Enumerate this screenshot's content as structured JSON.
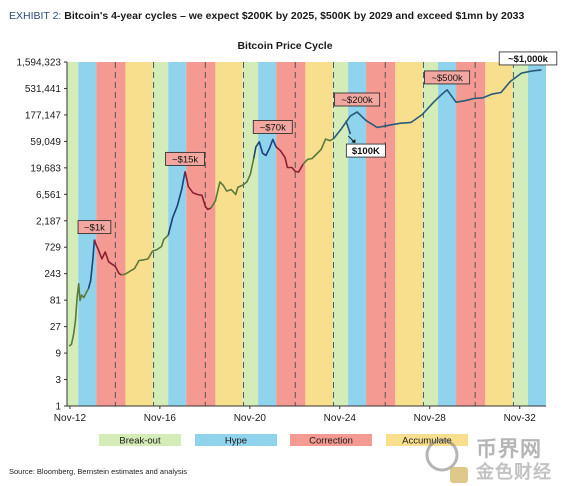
{
  "exhibit": {
    "label": "EXHIBIT 2:",
    "title": "Bitcoin's 4-year cycles – we expect $200K by 2025, $500K by 2029 and exceed $1mn by 2033"
  },
  "source": "Source: Bloomberg, Bernstein estimates and analysis",
  "watermark": {
    "line1": "币界网",
    "line2": "金色财经"
  },
  "colors": {
    "breakout": "#d3ecb8",
    "hype": "#8fd3ec",
    "correction": "#f49a93",
    "accumulate": "#f8df8e",
    "line_blue": "#1f3f7a",
    "line_red": "#8a2030",
    "line_green": "#5a7a3a",
    "callout_fill": "#f2a7a0",
    "forecast_line": "#2a5a7a"
  },
  "chart_data": {
    "type": "line",
    "title": "Bitcoin Price Cycle",
    "xlabel": "",
    "ylabel": "",
    "x_axis": {
      "start_year": 2012.7,
      "end_year": 2034.0,
      "ticks": [
        "Nov-12",
        "Nov-16",
        "Nov-20",
        "Nov-24",
        "Nov-28",
        "Nov-32"
      ],
      "tick_years": [
        2012.83,
        2016.83,
        2020.83,
        2024.83,
        2028.83,
        2032.83
      ]
    },
    "y_axis": {
      "scale": "log3",
      "ticks": [
        "1",
        "3",
        "9",
        "27",
        "81",
        "243",
        "729",
        "2,187",
        "6,561",
        "19,683",
        "59,049",
        "177,147",
        "531,441",
        "1,594,323"
      ],
      "min": 1,
      "max": 1594323
    },
    "grid": false,
    "legend_position": "bottom",
    "legend": [
      {
        "label": "Break-out",
        "phase": "breakout"
      },
      {
        "label": "Hype",
        "phase": "hype"
      },
      {
        "label": "Correction",
        "phase": "correction"
      },
      {
        "label": "Accumulate",
        "phase": "accumulate"
      }
    ],
    "bands": [
      {
        "start": 2012.7,
        "end": 2013.2,
        "phase": "breakout"
      },
      {
        "start": 2013.2,
        "end": 2014.0,
        "phase": "hype"
      },
      {
        "start": 2014.0,
        "end": 2015.3,
        "phase": "correction"
      },
      {
        "start": 2015.3,
        "end": 2016.5,
        "phase": "accumulate"
      },
      {
        "start": 2016.5,
        "end": 2017.2,
        "phase": "breakout"
      },
      {
        "start": 2017.2,
        "end": 2018.0,
        "phase": "hype"
      },
      {
        "start": 2018.0,
        "end": 2019.3,
        "phase": "correction"
      },
      {
        "start": 2019.3,
        "end": 2020.5,
        "phase": "accumulate"
      },
      {
        "start": 2020.5,
        "end": 2021.2,
        "phase": "breakout"
      },
      {
        "start": 2021.2,
        "end": 2022.0,
        "phase": "hype"
      },
      {
        "start": 2022.0,
        "end": 2023.3,
        "phase": "correction"
      },
      {
        "start": 2023.3,
        "end": 2024.5,
        "phase": "accumulate"
      },
      {
        "start": 2024.5,
        "end": 2025.2,
        "phase": "breakout"
      },
      {
        "start": 2025.2,
        "end": 2026.0,
        "phase": "hype"
      },
      {
        "start": 2026.0,
        "end": 2027.3,
        "phase": "correction"
      },
      {
        "start": 2027.3,
        "end": 2028.5,
        "phase": "accumulate"
      },
      {
        "start": 2028.5,
        "end": 2029.2,
        "phase": "breakout"
      },
      {
        "start": 2029.2,
        "end": 2030.0,
        "phase": "hype"
      },
      {
        "start": 2030.0,
        "end": 2031.3,
        "phase": "correction"
      },
      {
        "start": 2031.3,
        "end": 2032.5,
        "phase": "accumulate"
      },
      {
        "start": 2032.5,
        "end": 2033.2,
        "phase": "breakout"
      },
      {
        "start": 2033.2,
        "end": 2034.0,
        "phase": "hype"
      }
    ],
    "dividers": [
      2014.85,
      2016.55,
      2018.85,
      2020.55,
      2022.85,
      2024.55,
      2026.85,
      2028.55,
      2030.85,
      2032.55
    ],
    "segments": [
      {
        "name": "",
        "color_key": "line_green",
        "points": [
          [
            2012.8,
            12
          ],
          [
            2012.9,
            13
          ],
          [
            2013.0,
            20
          ],
          [
            2013.08,
            35
          ],
          [
            2013.15,
            90
          ],
          [
            2013.22,
            160
          ],
          [
            2013.28,
            80
          ],
          [
            2013.35,
            100
          ],
          [
            2013.45,
            90
          ],
          [
            2013.55,
            110
          ],
          [
            2013.65,
            130
          ]
        ]
      },
      {
        "name": "",
        "color_key": "line_blue",
        "points": [
          [
            2013.65,
            130
          ],
          [
            2013.75,
            180
          ],
          [
            2013.85,
            450
          ],
          [
            2013.92,
            1000
          ]
        ]
      },
      {
        "name": "",
        "color_key": "line_red",
        "points": [
          [
            2013.92,
            1000
          ],
          [
            2014.0,
            800
          ],
          [
            2014.1,
            650
          ],
          [
            2014.25,
            450
          ],
          [
            2014.4,
            600
          ],
          [
            2014.55,
            400
          ],
          [
            2014.7,
            360
          ],
          [
            2014.85,
            330
          ],
          [
            2015.0,
            250
          ],
          [
            2015.1,
            230
          ]
        ]
      },
      {
        "name": "",
        "color_key": "line_green",
        "points": [
          [
            2015.1,
            230
          ],
          [
            2015.3,
            240
          ],
          [
            2015.5,
            270
          ],
          [
            2015.7,
            300
          ],
          [
            2015.9,
            420
          ],
          [
            2016.1,
            430
          ],
          [
            2016.3,
            450
          ],
          [
            2016.5,
            620
          ],
          [
            2016.7,
            660
          ],
          [
            2016.9,
            750
          ],
          [
            2017.0,
            1000
          ],
          [
            2017.2,
            1200
          ]
        ]
      },
      {
        "name": "",
        "color_key": "line_blue",
        "points": [
          [
            2017.2,
            1200
          ],
          [
            2017.4,
            2500
          ],
          [
            2017.6,
            4000
          ],
          [
            2017.8,
            8000
          ],
          [
            2017.95,
            17000
          ]
        ]
      },
      {
        "name": "",
        "color_key": "line_red",
        "points": [
          [
            2017.95,
            17000
          ],
          [
            2018.1,
            9000
          ],
          [
            2018.3,
            7000
          ],
          [
            2018.5,
            6500
          ],
          [
            2018.7,
            6300
          ],
          [
            2018.85,
            4000
          ],
          [
            2018.95,
            3500
          ],
          [
            2019.1,
            3700
          ]
        ]
      },
      {
        "name": "",
        "color_key": "line_green",
        "points": [
          [
            2019.1,
            3700
          ],
          [
            2019.3,
            5000
          ],
          [
            2019.5,
            11000
          ],
          [
            2019.65,
            9500
          ],
          [
            2019.8,
            7500
          ],
          [
            2020.0,
            8000
          ],
          [
            2020.2,
            6500
          ],
          [
            2020.3,
            8800
          ],
          [
            2020.5,
            9500
          ],
          [
            2020.7,
            11000
          ],
          [
            2020.85,
            15000
          ],
          [
            2021.0,
            29000
          ]
        ]
      },
      {
        "name": "",
        "color_key": "line_blue",
        "points": [
          [
            2021.0,
            29000
          ],
          [
            2021.1,
            47000
          ],
          [
            2021.25,
            58000
          ],
          [
            2021.4,
            36000
          ],
          [
            2021.55,
            33000
          ],
          [
            2021.7,
            44000
          ],
          [
            2021.85,
            64000
          ],
          [
            2022.0,
            47000
          ]
        ]
      },
      {
        "name": "",
        "color_key": "line_red",
        "points": [
          [
            2022.0,
            47000
          ],
          [
            2022.2,
            40000
          ],
          [
            2022.4,
            30000
          ],
          [
            2022.5,
            20000
          ],
          [
            2022.7,
            20000
          ],
          [
            2022.85,
            17000
          ],
          [
            2023.0,
            16500
          ],
          [
            2023.2,
            23000
          ]
        ]
      },
      {
        "name": "",
        "color_key": "line_green",
        "points": [
          [
            2023.2,
            23000
          ],
          [
            2023.4,
            28000
          ],
          [
            2023.6,
            29000
          ],
          [
            2023.8,
            35000
          ],
          [
            2024.0,
            42000
          ],
          [
            2024.2,
            65000
          ],
          [
            2024.4,
            61000
          ],
          [
            2024.55,
            66000
          ]
        ]
      },
      {
        "name": "",
        "color_key": "forecast_line",
        "points": [
          [
            2024.55,
            66000
          ],
          [
            2024.9,
            100000
          ],
          [
            2025.3,
            170000
          ],
          [
            2025.6,
            200000
          ],
          [
            2026.0,
            140000
          ],
          [
            2026.5,
            105000
          ],
          [
            2027.0,
            115000
          ],
          [
            2027.5,
            125000
          ],
          [
            2028.0,
            130000
          ],
          [
            2028.5,
            180000
          ],
          [
            2029.0,
            300000
          ],
          [
            2029.4,
            430000
          ],
          [
            2029.6,
            500000
          ],
          [
            2030.0,
            300000
          ],
          [
            2030.4,
            320000
          ],
          [
            2030.8,
            350000
          ],
          [
            2031.2,
            360000
          ],
          [
            2031.6,
            420000
          ],
          [
            2032.0,
            450000
          ],
          [
            2032.4,
            700000
          ],
          [
            2032.9,
            1000000
          ],
          [
            2033.4,
            1100000
          ],
          [
            2033.8,
            1150000
          ]
        ]
      },
      {
        "name": "",
        "color_key": "forecast_line",
        "points": [
          [
            2025.1,
            140000
          ],
          [
            2025.3,
            80000
          ]
        ]
      }
    ],
    "annotations": [
      {
        "text": "~$1k",
        "x": 2013.92,
        "y": 1000,
        "style": "pink"
      },
      {
        "text": "~$15k",
        "x": 2017.95,
        "y": 17000,
        "style": "pink"
      },
      {
        "text": "~$70k",
        "x": 2021.85,
        "y": 64000,
        "style": "pink"
      },
      {
        "text": "~$200k",
        "x": 2025.6,
        "y": 200000,
        "style": "pink"
      },
      {
        "text": "$100K",
        "x": 2025.3,
        "y": 80000,
        "style": "white"
      },
      {
        "text": "~$500k",
        "x": 2029.6,
        "y": 500000,
        "style": "pink"
      },
      {
        "text": "~$1,000k",
        "x": 2033.2,
        "y": 1100000,
        "style": "white"
      }
    ]
  }
}
